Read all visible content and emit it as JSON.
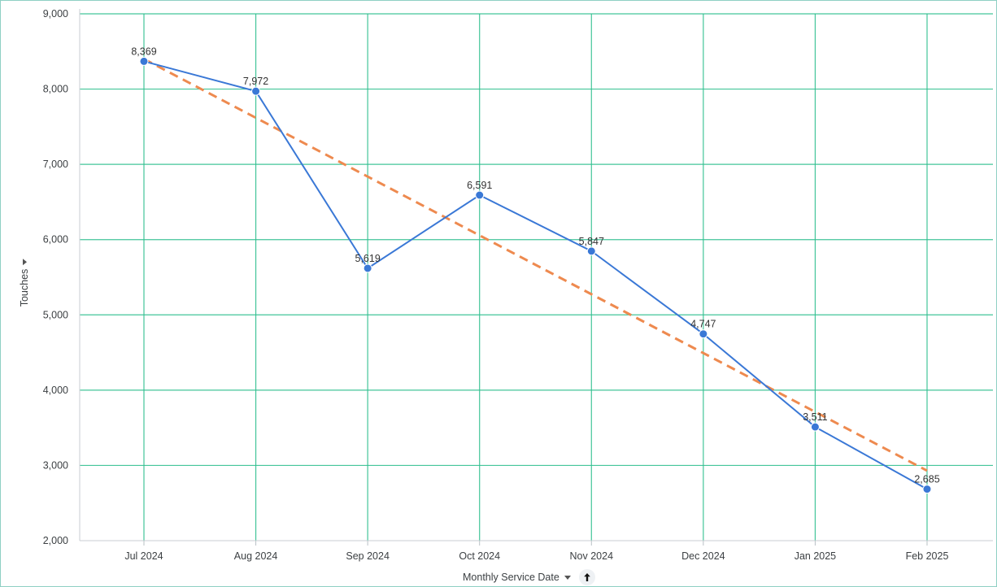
{
  "chart_data": {
    "type": "line",
    "categories": [
      "Jul 2024",
      "Aug 2024",
      "Sep 2024",
      "Oct 2024",
      "Nov 2024",
      "Dec 2024",
      "Jan 2025",
      "Feb 2025"
    ],
    "series": [
      {
        "values": [
          8369,
          7972,
          5619,
          6591,
          5847,
          4747,
          3511,
          2685
        ],
        "color": "#3a78d6"
      }
    ],
    "data_labels": [
      "8,369",
      "7,972",
      "5,619",
      "6,591",
      "5,847",
      "4,747",
      "3,511",
      "2,685"
    ],
    "trendline": {
      "style": "dashed",
      "color": "#ee8a4f",
      "start": 8400,
      "end": 2930
    },
    "ylabel": "Touches",
    "xlabel": "Monthly Service Date",
    "ylim": [
      2000,
      9000
    ],
    "yticks": [
      2000,
      3000,
      4000,
      5000,
      6000,
      7000,
      8000,
      9000
    ],
    "ytick_labels": [
      "2,000",
      "3,000",
      "4,000",
      "5,000",
      "6,000",
      "7,000",
      "8,000",
      "9,000"
    ],
    "grid": true,
    "grid_color": "#2fbf8f"
  },
  "controls": {
    "sort_icon": "arrow-up-icon",
    "dropdown_icon": "caret-down-icon"
  }
}
